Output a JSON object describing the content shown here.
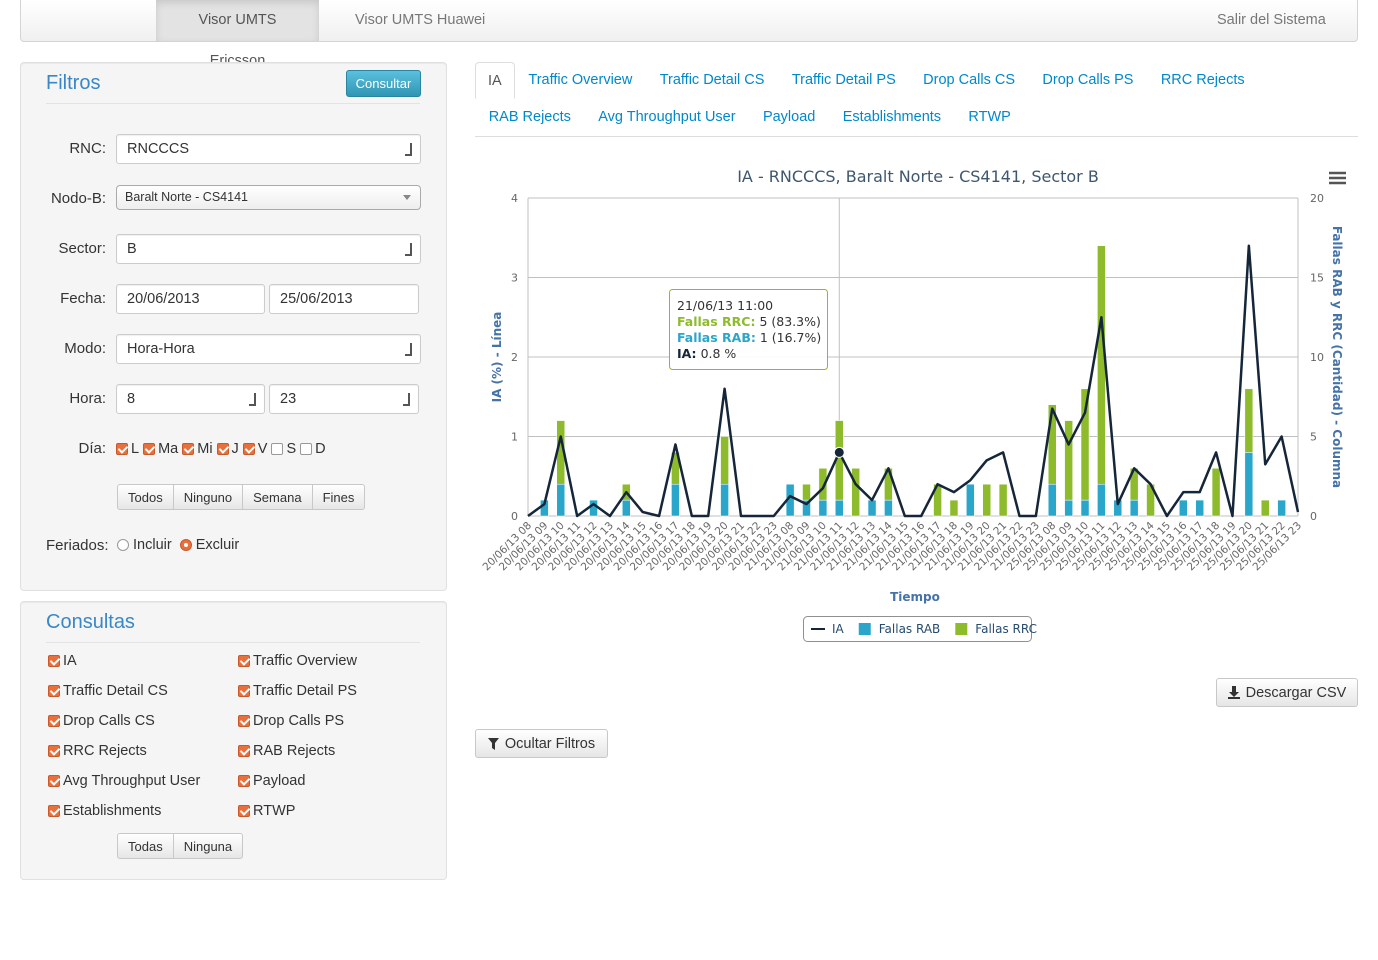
{
  "navbar": {
    "items": [
      "Visor UMTS Ericsson",
      "Visor UMTS Huawei"
    ],
    "logout": "Salir del Sistema"
  },
  "filters": {
    "title": "Filtros",
    "submit": "Consultar",
    "rnc": {
      "label": "RNC:",
      "value": "RNCCCS"
    },
    "nodo": {
      "label": "Nodo-B:",
      "value": "Baralt Norte - CS4141"
    },
    "sector": {
      "label": "Sector:",
      "value": "B"
    },
    "fecha": {
      "label": "Fecha:",
      "from": "20/06/2013",
      "to": "25/06/2013"
    },
    "modo": {
      "label": "Modo:",
      "value": "Hora-Hora"
    },
    "hora": {
      "label": "Hora:",
      "from": "8",
      "to": "23"
    },
    "dia": {
      "label": "Día:",
      "days": [
        {
          "label": "L",
          "checked": true
        },
        {
          "label": "Ma",
          "checked": true
        },
        {
          "label": "Mi",
          "checked": true
        },
        {
          "label": "J",
          "checked": true
        },
        {
          "label": "V",
          "checked": true
        },
        {
          "label": "S",
          "checked": false
        },
        {
          "label": "D",
          "checked": false
        }
      ]
    },
    "day_buttons": [
      "Todos",
      "Ninguno",
      "Semana",
      "Fines"
    ],
    "feriados": {
      "label": "Feriados:",
      "options": [
        {
          "label": "Incluir",
          "selected": false
        },
        {
          "label": "Excluir",
          "selected": true
        }
      ]
    }
  },
  "queries": {
    "title": "Consultas",
    "items": [
      {
        "label": "IA",
        "checked": true
      },
      {
        "label": "Traffic Overview",
        "checked": true
      },
      {
        "label": "Traffic Detail CS",
        "checked": true
      },
      {
        "label": "Traffic Detail PS",
        "checked": true
      },
      {
        "label": "Drop Calls CS",
        "checked": true
      },
      {
        "label": "Drop Calls PS",
        "checked": true
      },
      {
        "label": "RRC Rejects",
        "checked": true
      },
      {
        "label": "RAB Rejects",
        "checked": true
      },
      {
        "label": "Avg Throughput User",
        "checked": true
      },
      {
        "label": "Payload",
        "checked": true
      },
      {
        "label": "Establishments",
        "checked": true
      },
      {
        "label": "RTWP",
        "checked": true
      }
    ],
    "buttons": [
      "Todas",
      "Ninguna"
    ]
  },
  "tabs": {
    "items": [
      "IA",
      "Traffic Overview",
      "Traffic Detail CS",
      "Traffic Detail PS",
      "Drop Calls CS",
      "Drop Calls PS",
      "RRC Rejects",
      "RAB Rejects",
      "Avg Throughput User",
      "Payload",
      "Establishments",
      "RTWP"
    ],
    "active": 0
  },
  "chart_data": {
    "type": "combo",
    "title": "IA - RNCCCS, Baralt Norte - CS4141, Sector B",
    "x_label": "Tiempo",
    "y_label": "IA (%) - Línea",
    "y2_label": "Fallas RAB y RRC (Cantidad) - Columna",
    "categories": [
      "20/06/13 08",
      "20/06/13 09",
      "20/06/13 10",
      "20/06/13 11",
      "20/06/13 12",
      "20/06/13 13",
      "20/06/13 14",
      "20/06/13 15",
      "20/06/13 16",
      "20/06/13 17",
      "20/06/13 18",
      "20/06/13 19",
      "20/06/13 20",
      "20/06/13 21",
      "20/06/13 22",
      "20/06/13 23",
      "21/06/13 08",
      "21/06/13 09",
      "21/06/13 10",
      "21/06/13 11",
      "21/06/13 12",
      "21/06/13 13",
      "21/06/13 14",
      "21/06/13 15",
      "21/06/13 16",
      "21/06/13 17",
      "21/06/13 18",
      "21/06/13 19",
      "21/06/13 20",
      "21/06/13 21",
      "21/06/13 22",
      "21/06/13 23",
      "25/06/13 08",
      "25/06/13 09",
      "25/06/13 10",
      "25/06/13 11",
      "25/06/13 12",
      "25/06/13 13",
      "25/06/13 14",
      "25/06/13 15",
      "25/06/13 16",
      "25/06/13 17",
      "25/06/13 18",
      "25/06/13 19",
      "25/06/13 20",
      "25/06/13 21",
      "25/06/13 22",
      "25/06/13 23"
    ],
    "series": [
      {
        "name": "IA",
        "type": "line",
        "color": "#15263a",
        "values": [
          0,
          0.15,
          1.0,
          0,
          0.15,
          0,
          0.3,
          0.05,
          0,
          0.9,
          0,
          0,
          1.6,
          0,
          0,
          0,
          0.25,
          0.15,
          0.35,
          0.8,
          0.4,
          0.2,
          0.6,
          0,
          0,
          0.4,
          0.3,
          0.45,
          0.7,
          0.8,
          0,
          0,
          1.35,
          0.9,
          1.3,
          2.5,
          0.15,
          0.6,
          0.4,
          0,
          0.3,
          0.3,
          0.8,
          0,
          3.4,
          0.65,
          1.0,
          0.05
        ]
      },
      {
        "name": "Fallas RAB",
        "type": "bar",
        "axis": "y2",
        "color": "#2ba6cb",
        "values": [
          0,
          1,
          2,
          0,
          1,
          0,
          1,
          0,
          0,
          2,
          0,
          0,
          2,
          0,
          0,
          0,
          2,
          1,
          1,
          1,
          0,
          1,
          1,
          0,
          0,
          0,
          0,
          2,
          0,
          0,
          0,
          0,
          2,
          1,
          1,
          2,
          1,
          1,
          0,
          0,
          1,
          1,
          0,
          0,
          4,
          0,
          1,
          0
        ]
      },
      {
        "name": "Fallas RRC",
        "type": "bar",
        "axis": "y2",
        "color": "#8dbb2c",
        "values": [
          0,
          0,
          4,
          0,
          0,
          0,
          1,
          0,
          0,
          2,
          0,
          0,
          3,
          0,
          0,
          0,
          0,
          1,
          2,
          5,
          3,
          0,
          2,
          0,
          0,
          2,
          1,
          0,
          2,
          2,
          0,
          0,
          5,
          5,
          7,
          15,
          0,
          2,
          2,
          0,
          0,
          0,
          3,
          0,
          4,
          1,
          0,
          0
        ]
      }
    ],
    "ylim": [
      0,
      4
    ],
    "yticks": [
      0,
      1,
      2,
      3,
      4
    ],
    "y2lim": [
      0,
      20
    ],
    "y2ticks": [
      0,
      5,
      10,
      15,
      20
    ],
    "grid": true,
    "stacked": true,
    "tooltip": {
      "title": "21/06/13 11:00",
      "rows": [
        {
          "label": "Fallas RRC:",
          "text": "5 (83.3%)"
        },
        {
          "label": "Fallas RAB:",
          "text": "1 (16.7%)"
        },
        {
          "label": "IA:",
          "text": "0.8 %"
        }
      ]
    }
  },
  "buttons": {
    "download": "Descargar CSV",
    "hide_filters": "Ocultar Filtros"
  }
}
